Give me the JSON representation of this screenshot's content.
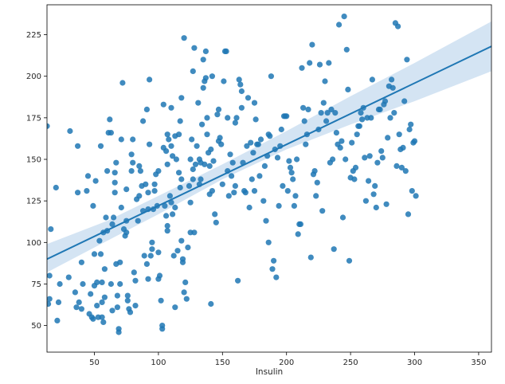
{
  "chart_data": {
    "type": "scatter",
    "title": "",
    "xlabel": "Insulin",
    "ylabel": "",
    "xlim": [
      13,
      360
    ],
    "ylim": [
      34,
      243
    ],
    "xticks": [
      50,
      100,
      150,
      200,
      250,
      300,
      350
    ],
    "xtick_labels": [
      "50",
      "100",
      "150",
      "200",
      "250",
      "300",
      "350"
    ],
    "yticks": [
      50,
      75,
      100,
      125,
      150,
      175,
      200,
      225
    ],
    "ytick_labels": [
      "50",
      "75",
      "100",
      "125",
      "150",
      "175",
      "200",
      "225"
    ],
    "grid": false,
    "legend": "none",
    "colors": {
      "points": "#1f77b4",
      "line": "#1f77b4",
      "band": "#c6dbef"
    },
    "regression": {
      "x": [
        13,
        360
      ],
      "y": [
        90,
        218
      ],
      "ci_band": {
        "x": [
          13,
          60,
          100,
          150,
          200,
          250,
          300,
          360
        ],
        "lower": [
          82,
          101,
          117,
          138,
          156,
          171,
          185,
          203
        ],
        "upper": [
          99,
          113,
          128,
          147,
          167,
          188,
          208,
          233
        ]
      }
    },
    "points": [
      [
        13,
        170
      ],
      [
        16,
        108
      ],
      [
        15,
        80
      ],
      [
        14,
        63
      ],
      [
        15,
        66
      ],
      [
        20,
        133
      ],
      [
        21,
        53
      ],
      [
        22,
        64
      ],
      [
        23,
        75
      ],
      [
        31,
        167
      ],
      [
        30,
        79
      ],
      [
        35,
        70
      ],
      [
        36,
        61
      ],
      [
        37,
        130
      ],
      [
        37,
        158
      ],
      [
        38,
        64
      ],
      [
        40,
        88
      ],
      [
        40,
        60
      ],
      [
        41,
        75
      ],
      [
        44,
        131
      ],
      [
        45,
        140
      ],
      [
        46,
        57
      ],
      [
        47,
        69
      ],
      [
        48,
        55
      ],
      [
        49,
        122
      ],
      [
        49,
        54
      ],
      [
        50,
        93
      ],
      [
        50,
        74
      ],
      [
        51,
        137
      ],
      [
        52,
        76
      ],
      [
        52,
        62
      ],
      [
        53,
        55
      ],
      [
        54,
        101
      ],
      [
        55,
        158
      ],
      [
        56,
        64
      ],
      [
        56,
        55
      ],
      [
        55,
        93
      ],
      [
        56,
        76
      ],
      [
        57,
        52
      ],
      [
        57,
        106
      ],
      [
        58,
        67
      ],
      [
        58,
        84
      ],
      [
        60,
        107
      ],
      [
        59,
        115
      ],
      [
        60,
        143
      ],
      [
        61,
        166
      ],
      [
        62,
        174
      ],
      [
        63,
        166
      ],
      [
        63,
        75
      ],
      [
        64,
        59
      ],
      [
        64,
        111
      ],
      [
        65,
        115
      ],
      [
        66,
        136
      ],
      [
        66,
        142
      ],
      [
        66,
        130
      ],
      [
        67,
        87
      ],
      [
        67,
        148
      ],
      [
        68,
        68
      ],
      [
        68,
        61
      ],
      [
        69,
        46
      ],
      [
        69,
        48
      ],
      [
        70,
        88
      ],
      [
        70,
        75
      ],
      [
        71,
        121
      ],
      [
        71,
        162
      ],
      [
        72,
        196
      ],
      [
        73,
        108
      ],
      [
        74,
        104
      ],
      [
        75,
        113
      ],
      [
        75,
        132
      ],
      [
        75,
        106
      ],
      [
        76,
        68
      ],
      [
        76,
        65
      ],
      [
        77,
        60
      ],
      [
        78,
        58
      ],
      [
        79,
        143
      ],
      [
        79,
        153
      ],
      [
        80,
        148
      ],
      [
        80,
        162
      ],
      [
        81,
        82
      ],
      [
        82,
        77
      ],
      [
        82,
        62
      ],
      [
        83,
        126
      ],
      [
        84,
        113
      ],
      [
        85,
        146
      ],
      [
        85,
        128
      ],
      [
        86,
        143
      ],
      [
        87,
        134
      ],
      [
        88,
        119
      ],
      [
        88,
        173
      ],
      [
        89,
        92
      ],
      [
        90,
        135
      ],
      [
        91,
        180
      ],
      [
        91,
        87
      ],
      [
        92,
        120
      ],
      [
        92,
        78
      ],
      [
        92,
        130
      ],
      [
        93,
        198
      ],
      [
        93,
        159
      ],
      [
        94,
        92
      ],
      [
        95,
        100
      ],
      [
        95,
        96
      ],
      [
        96,
        120
      ],
      [
        97,
        131
      ],
      [
        97,
        135
      ],
      [
        98,
        141
      ],
      [
        99,
        122
      ],
      [
        100,
        143
      ],
      [
        100,
        78
      ],
      [
        100,
        94
      ],
      [
        101,
        80
      ],
      [
        102,
        65
      ],
      [
        103,
        50
      ],
      [
        103,
        48
      ],
      [
        104,
        183
      ],
      [
        104,
        157
      ],
      [
        105,
        122
      ],
      [
        106,
        116
      ],
      [
        106,
        155
      ],
      [
        107,
        147
      ],
      [
        107,
        110
      ],
      [
        107,
        107
      ],
      [
        107,
        165
      ],
      [
        108,
        162
      ],
      [
        109,
        128
      ],
      [
        110,
        124
      ],
      [
        110,
        158
      ],
      [
        110,
        181
      ],
      [
        111,
        117
      ],
      [
        111,
        152
      ],
      [
        112,
        92
      ],
      [
        113,
        61
      ],
      [
        113,
        164
      ],
      [
        113,
        121
      ],
      [
        114,
        150
      ],
      [
        115,
        95
      ],
      [
        116,
        165
      ],
      [
        116,
        142
      ],
      [
        117,
        173
      ],
      [
        117,
        133
      ],
      [
        118,
        101
      ],
      [
        118,
        138
      ],
      [
        118,
        187
      ],
      [
        119,
        90
      ],
      [
        119,
        88
      ],
      [
        120,
        223
      ],
      [
        120,
        70
      ],
      [
        121,
        76
      ],
      [
        122,
        66
      ],
      [
        123,
        97
      ],
      [
        124,
        134
      ],
      [
        125,
        150
      ],
      [
        125,
        124
      ],
      [
        125,
        106
      ],
      [
        126,
        162
      ],
      [
        127,
        138
      ],
      [
        127,
        144
      ],
      [
        127,
        203
      ],
      [
        128,
        106
      ],
      [
        128,
        217
      ],
      [
        129,
        147
      ],
      [
        130,
        158
      ],
      [
        131,
        184
      ],
      [
        132,
        150
      ],
      [
        132,
        135
      ],
      [
        133,
        138
      ],
      [
        133,
        148
      ],
      [
        134,
        171
      ],
      [
        135,
        193
      ],
      [
        135,
        210
      ],
      [
        136,
        197
      ],
      [
        136,
        147
      ],
      [
        137,
        199
      ],
      [
        137,
        215
      ],
      [
        138,
        165
      ],
      [
        138,
        175
      ],
      [
        139,
        154
      ],
      [
        140,
        146
      ],
      [
        140,
        129
      ],
      [
        141,
        63
      ],
      [
        141,
        156
      ],
      [
        142,
        200
      ],
      [
        142,
        131
      ],
      [
        143,
        149
      ],
      [
        144,
        117
      ],
      [
        145,
        112
      ],
      [
        146,
        177
      ],
      [
        147,
        180
      ],
      [
        147,
        161
      ],
      [
        148,
        163
      ],
      [
        149,
        159
      ],
      [
        150,
        135
      ],
      [
        151,
        197
      ],
      [
        152,
        215
      ],
      [
        153,
        215
      ],
      [
        154,
        175
      ],
      [
        154,
        143
      ],
      [
        155,
        128
      ],
      [
        156,
        153
      ],
      [
        157,
        140
      ],
      [
        158,
        148
      ],
      [
        159,
        130
      ],
      [
        160,
        134
      ],
      [
        160,
        172
      ],
      [
        161,
        175
      ],
      [
        162,
        77
      ],
      [
        163,
        198
      ],
      [
        164,
        195
      ],
      [
        165,
        191
      ],
      [
        165,
        181
      ],
      [
        166,
        148
      ],
      [
        167,
        131
      ],
      [
        168,
        130
      ],
      [
        169,
        158
      ],
      [
        170,
        187
      ],
      [
        171,
        121
      ],
      [
        172,
        160
      ],
      [
        173,
        138
      ],
      [
        174,
        154
      ],
      [
        175,
        131
      ],
      [
        175,
        184
      ],
      [
        176,
        174
      ],
      [
        177,
        159
      ],
      [
        178,
        159
      ],
      [
        179,
        140
      ],
      [
        180,
        162
      ],
      [
        182,
        125
      ],
      [
        183,
        146
      ],
      [
        184,
        113
      ],
      [
        185,
        152
      ],
      [
        186,
        165
      ],
      [
        186,
        100
      ],
      [
        187,
        164
      ],
      [
        188,
        200
      ],
      [
        189,
        84
      ],
      [
        190,
        89
      ],
      [
        191,
        156
      ],
      [
        192,
        79
      ],
      [
        193,
        151
      ],
      [
        194,
        122
      ],
      [
        195,
        158
      ],
      [
        196,
        168
      ],
      [
        197,
        134
      ],
      [
        198,
        176
      ],
      [
        199,
        176
      ],
      [
        200,
        176
      ],
      [
        201,
        131
      ],
      [
        202,
        149
      ],
      [
        203,
        145
      ],
      [
        204,
        142
      ],
      [
        205,
        138
      ],
      [
        206,
        122
      ],
      [
        207,
        128
      ],
      [
        208,
        150
      ],
      [
        209,
        105
      ],
      [
        210,
        111
      ],
      [
        211,
        111
      ],
      [
        212,
        205
      ],
      [
        213,
        181
      ],
      [
        214,
        173
      ],
      [
        215,
        159
      ],
      [
        216,
        165
      ],
      [
        217,
        180
      ],
      [
        218,
        208
      ],
      [
        219,
        91
      ],
      [
        220,
        219
      ],
      [
        221,
        141
      ],
      [
        222,
        143
      ],
      [
        223,
        128
      ],
      [
        224,
        136
      ],
      [
        225,
        168
      ],
      [
        226,
        207
      ],
      [
        227,
        178
      ],
      [
        228,
        119
      ],
      [
        229,
        184
      ],
      [
        230,
        197
      ],
      [
        231,
        173
      ],
      [
        232,
        178
      ],
      [
        233,
        208
      ],
      [
        234,
        148
      ],
      [
        235,
        180
      ],
      [
        236,
        150
      ],
      [
        237,
        96
      ],
      [
        238,
        178
      ],
      [
        239,
        166
      ],
      [
        240,
        159
      ],
      [
        241,
        231
      ],
      [
        242,
        157
      ],
      [
        243,
        161
      ],
      [
        244,
        115
      ],
      [
        245,
        236
      ],
      [
        246,
        150
      ],
      [
        247,
        216
      ],
      [
        248,
        192
      ],
      [
        249,
        89
      ],
      [
        250,
        139
      ],
      [
        251,
        160
      ],
      [
        252,
        143
      ],
      [
        253,
        138
      ],
      [
        254,
        145
      ],
      [
        255,
        165
      ],
      [
        256,
        170
      ],
      [
        257,
        170
      ],
      [
        258,
        178
      ],
      [
        259,
        174
      ],
      [
        260,
        181
      ],
      [
        261,
        151
      ],
      [
        262,
        125
      ],
      [
        263,
        175
      ],
      [
        264,
        137
      ],
      [
        265,
        152
      ],
      [
        266,
        175
      ],
      [
        267,
        198
      ],
      [
        268,
        129
      ],
      [
        269,
        134
      ],
      [
        270,
        121
      ],
      [
        271,
        148
      ],
      [
        272,
        180
      ],
      [
        273,
        180
      ],
      [
        274,
        155
      ],
      [
        275,
        151
      ],
      [
        276,
        183
      ],
      [
        277,
        185
      ],
      [
        278,
        123
      ],
      [
        279,
        163
      ],
      [
        280,
        194
      ],
      [
        281,
        175
      ],
      [
        282,
        198
      ],
      [
        283,
        193
      ],
      [
        284,
        178
      ],
      [
        285,
        232
      ],
      [
        286,
        146
      ],
      [
        287,
        230
      ],
      [
        288,
        165
      ],
      [
        289,
        156
      ],
      [
        290,
        145
      ],
      [
        291,
        157
      ],
      [
        292,
        185
      ],
      [
        293,
        143
      ],
      [
        294,
        210
      ],
      [
        295,
        117
      ],
      [
        296,
        168
      ],
      [
        297,
        171
      ],
      [
        298,
        131
      ],
      [
        299,
        160
      ],
      [
        300,
        161
      ],
      [
        301,
        128
      ]
    ]
  }
}
